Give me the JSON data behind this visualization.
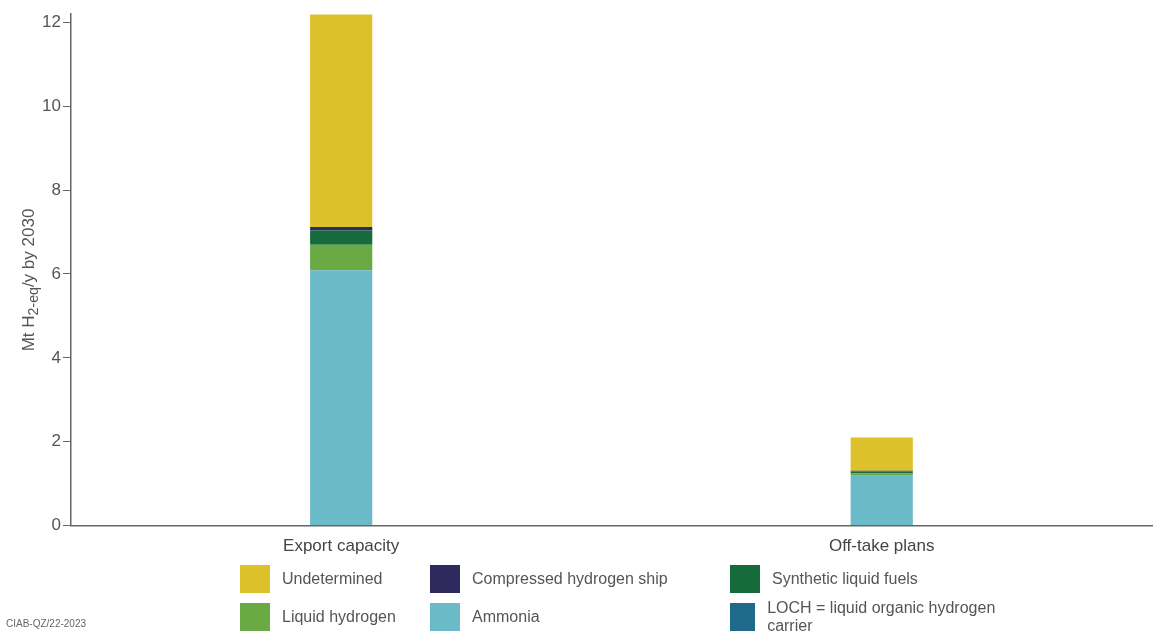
{
  "chart_data": {
    "type": "bar",
    "stacked": true,
    "ylabel": "Mt H$_{2-eq}$/y by 2030",
    "categories": [
      "Export capacity",
      "Off-take plans"
    ],
    "series": [
      {
        "name": "LOCH = liquid organic hydrogen carrier",
        "color": "#1f6a8a",
        "values": [
          0,
          0
        ]
      },
      {
        "name": "Ammonia",
        "color": "#6bbac8",
        "values": [
          6.09,
          1.19
        ]
      },
      {
        "name": "Liquid hydrogen",
        "color": "#6aaa45",
        "values": [
          0.61,
          0.05
        ]
      },
      {
        "name": "Synthetic liquid fuels",
        "color": "#156b3a",
        "values": [
          0.34,
          0.05
        ]
      },
      {
        "name": "Compressed hydrogen ship",
        "color": "#2e2a5e",
        "values": [
          0.08,
          0.02
        ]
      },
      {
        "name": "Undetermined",
        "color": "#dcc12a",
        "values": [
          5.07,
          0.79
        ]
      }
    ],
    "ylim": [
      0,
      12.2
    ],
    "yticks": [
      0,
      2,
      4,
      6,
      8,
      10,
      12
    ],
    "grid": false,
    "legend": "bottom",
    "annotations": [
      "CIAB-QZ/22-2023"
    ]
  }
}
